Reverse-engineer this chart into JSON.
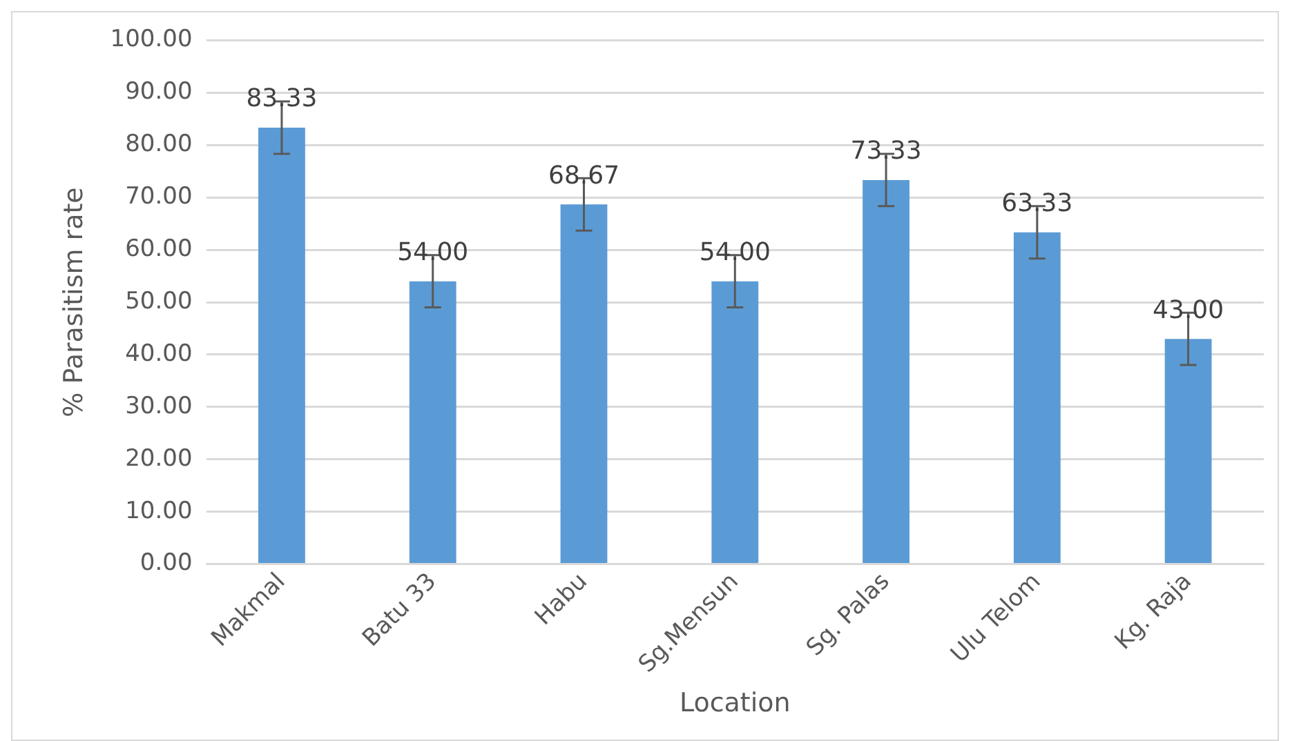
{
  "chart_data": {
    "type": "bar",
    "xlabel": "Location",
    "ylabel": "% Parasitism rate",
    "categories": [
      "Makmal",
      "Batu 33",
      "Habu",
      "Sg.Mensun",
      "Sg. Palas",
      "Ulu Telom",
      "Kg. Raja"
    ],
    "values": [
      83.33,
      54.0,
      68.67,
      54.0,
      73.33,
      63.33,
      43.0
    ],
    "value_labels": [
      "83.33",
      "54.00",
      "68.67",
      "54.00",
      "73.33",
      "63.33",
      "43.00"
    ],
    "errors": [
      5,
      5,
      5,
      5,
      5,
      5,
      5
    ],
    "color": "#5b9bd5",
    "ylim": [
      0,
      100
    ],
    "yticks": [
      {
        "value": 0,
        "label": "0.00"
      },
      {
        "value": 10,
        "label": "10.00"
      },
      {
        "value": 20,
        "label": "20.00"
      },
      {
        "value": 30,
        "label": "30.00"
      },
      {
        "value": 40,
        "label": "40.00"
      },
      {
        "value": 50,
        "label": "50.00"
      },
      {
        "value": 60,
        "label": "60.00"
      },
      {
        "value": 70,
        "label": "70.00"
      },
      {
        "value": 80,
        "label": "80.00"
      },
      {
        "value": 90,
        "label": "90.00"
      },
      {
        "value": 100,
        "label": "100.00"
      }
    ],
    "grid": "y"
  }
}
